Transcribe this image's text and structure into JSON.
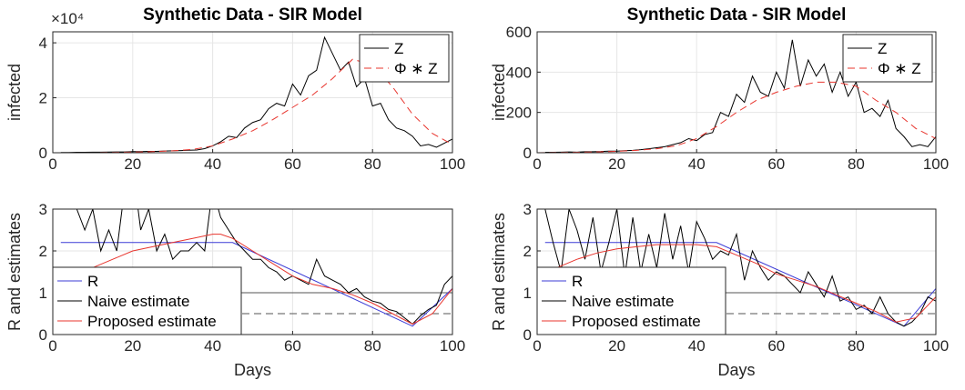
{
  "chart_data": [
    {
      "type": "line",
      "title": "Synthetic Data - SIR Model",
      "ylabel": "infected",
      "y_exponent": "×10⁴",
      "x": [
        2,
        4,
        6,
        8,
        10,
        12,
        14,
        16,
        18,
        20,
        22,
        24,
        26,
        28,
        30,
        32,
        34,
        36,
        38,
        40,
        42,
        44,
        46,
        48,
        50,
        52,
        54,
        56,
        58,
        60,
        62,
        64,
        66,
        68,
        70,
        72,
        74,
        76,
        78,
        80,
        82,
        84,
        86,
        88,
        90,
        92,
        94,
        96,
        98,
        100
      ],
      "xlim": [
        0,
        100
      ],
      "xticks": [
        0,
        20,
        40,
        60,
        80,
        100
      ],
      "ylim": [
        0,
        44000
      ],
      "yticks": [
        0,
        {
          "value": 20000,
          "label": "2"
        },
        {
          "value": 40000,
          "label": "4"
        }
      ],
      "grid": true,
      "legend": "northeast",
      "series": [
        {
          "name": "Z",
          "color": "#000000",
          "style": "solid",
          "values": [
            100,
            100,
            150,
            150,
            200,
            200,
            250,
            300,
            300,
            400,
            400,
            500,
            500,
            600,
            700,
            800,
            900,
            1000,
            1500,
            2500,
            4000,
            6000,
            5500,
            9000,
            11000,
            12000,
            16000,
            18000,
            17000,
            25000,
            21000,
            28000,
            30000,
            42000,
            36000,
            30000,
            33000,
            24000,
            27000,
            17000,
            18000,
            12000,
            9000,
            8000,
            6000,
            2500,
            3000,
            2000,
            3500,
            5000
          ]
        },
        {
          "name": "Φ ∗ Z",
          "color": "#e8352e",
          "style": "dashed",
          "x": [
            0,
            5,
            10,
            15,
            20,
            25,
            30,
            35,
            40,
            45,
            50,
            55,
            60,
            65,
            70,
            75,
            80,
            85,
            90,
            95,
            100
          ],
          "values": [
            0,
            0,
            0,
            100,
            200,
            400,
            700,
            1200,
            2500,
            5000,
            8000,
            12000,
            16500,
            21000,
            27000,
            34000,
            32000,
            24000,
            14000,
            7000,
            3000
          ]
        }
      ]
    },
    {
      "type": "line",
      "title": "Synthetic Data - SIR Model",
      "ylabel": "infected",
      "x": [
        2,
        4,
        6,
        8,
        10,
        12,
        14,
        16,
        18,
        20,
        22,
        24,
        26,
        28,
        30,
        32,
        34,
        36,
        38,
        40,
        42,
        44,
        46,
        48,
        50,
        52,
        54,
        56,
        58,
        60,
        62,
        64,
        66,
        68,
        70,
        72,
        74,
        76,
        78,
        80,
        82,
        84,
        86,
        88,
        90,
        92,
        94,
        96,
        98,
        100
      ],
      "xlim": [
        0,
        100
      ],
      "xticks": [
        0,
        20,
        40,
        60,
        80,
        100
      ],
      "ylim": [
        0,
        600
      ],
      "yticks": [
        0,
        200,
        400,
        600
      ],
      "grid": true,
      "legend": "northeast",
      "series": [
        {
          "name": "Z",
          "color": "#000000",
          "style": "solid",
          "values": [
            2,
            2,
            3,
            4,
            3,
            5,
            5,
            6,
            8,
            8,
            10,
            12,
            15,
            20,
            25,
            30,
            40,
            50,
            70,
            60,
            90,
            100,
            200,
            180,
            290,
            250,
            380,
            300,
            280,
            400,
            320,
            560,
            330,
            460,
            380,
            440,
            300,
            400,
            280,
            350,
            200,
            220,
            180,
            260,
            120,
            80,
            30,
            40,
            30,
            80
          ]
        },
        {
          "name": "Φ ∗ Z",
          "color": "#e8352e",
          "style": "dashed",
          "x": [
            0,
            5,
            10,
            15,
            20,
            25,
            30,
            35,
            40,
            45,
            50,
            55,
            60,
            65,
            70,
            75,
            80,
            85,
            90,
            95,
            100
          ],
          "values": [
            0,
            1,
            2,
            4,
            7,
            12,
            20,
            35,
            70,
            130,
            200,
            260,
            300,
            330,
            350,
            350,
            330,
            260,
            200,
            120,
            70
          ]
        }
      ]
    },
    {
      "type": "line",
      "ylabel": "R and estimates",
      "xlabel": "Days",
      "x": [
        2,
        4,
        6,
        8,
        10,
        12,
        14,
        16,
        18,
        20,
        22,
        24,
        26,
        28,
        30,
        32,
        34,
        36,
        38,
        40,
        42,
        44,
        46,
        48,
        50,
        52,
        54,
        56,
        58,
        60,
        62,
        64,
        66,
        68,
        70,
        72,
        74,
        76,
        78,
        80,
        82,
        84,
        86,
        88,
        90,
        92,
        94,
        96,
        98,
        100
      ],
      "xlim": [
        0,
        100
      ],
      "xticks": [
        0,
        20,
        40,
        60,
        80,
        100
      ],
      "ylim": [
        0,
        3
      ],
      "yticks": [
        0,
        1,
        2,
        3
      ],
      "grid": true,
      "legend": "southwest",
      "hlines": [
        {
          "value": 1,
          "color": "#555555",
          "style": "solid"
        },
        {
          "value": 0.5,
          "color": "#555555",
          "style": "dashed"
        }
      ],
      "series": [
        {
          "name": "R",
          "color": "#3b3bd6",
          "style": "solid",
          "x": [
            2,
            45,
            90,
            100
          ],
          "values": [
            2.2,
            2.2,
            0.2,
            1.1
          ]
        },
        {
          "name": "Naive estimate",
          "color": "#000000",
          "style": "solid",
          "values": [
            4,
            3.5,
            3,
            2.5,
            3,
            2,
            2.5,
            2,
            3.5,
            4,
            2.5,
            3,
            2,
            2.4,
            1.8,
            2,
            2,
            2.2,
            2,
            3.5,
            2.8,
            2.5,
            2.2,
            2,
            1.8,
            1.8,
            1.6,
            1.5,
            1.3,
            1.4,
            1.3,
            1.2,
            1.8,
            1.4,
            1.3,
            1.2,
            1,
            1.1,
            0.9,
            0.8,
            0.75,
            0.6,
            0.55,
            0.4,
            0.25,
            0.45,
            0.6,
            0.7,
            1.2,
            1.4
          ]
        },
        {
          "name": "Proposed estimate",
          "color": "#e8352e",
          "style": "solid",
          "x": [
            0,
            5,
            10,
            15,
            20,
            25,
            30,
            35,
            40,
            42,
            45,
            50,
            55,
            60,
            65,
            70,
            75,
            80,
            85,
            90,
            95,
            100
          ],
          "values": [
            1.2,
            1.4,
            1.6,
            1.8,
            2,
            2.1,
            2.2,
            2.3,
            2.4,
            2.4,
            2.3,
            2,
            1.7,
            1.4,
            1.2,
            1.1,
            0.95,
            0.75,
            0.5,
            0.25,
            0.5,
            1.1
          ]
        }
      ]
    },
    {
      "type": "line",
      "ylabel": "R and estimates",
      "xlabel": "Days",
      "x": [
        2,
        4,
        6,
        8,
        10,
        12,
        14,
        16,
        18,
        20,
        22,
        24,
        26,
        28,
        30,
        32,
        34,
        36,
        38,
        40,
        42,
        44,
        46,
        48,
        50,
        52,
        54,
        56,
        58,
        60,
        62,
        64,
        66,
        68,
        70,
        72,
        74,
        76,
        78,
        80,
        82,
        84,
        86,
        88,
        90,
        92,
        94,
        96,
        98,
        100
      ],
      "xlim": [
        0,
        100
      ],
      "xticks": [
        0,
        20,
        40,
        60,
        80,
        100
      ],
      "ylim": [
        0,
        3
      ],
      "yticks": [
        0,
        1,
        2,
        3
      ],
      "grid": true,
      "legend": "southwest",
      "hlines": [
        {
          "value": 1,
          "color": "#555555",
          "style": "solid"
        },
        {
          "value": 0.5,
          "color": "#555555",
          "style": "dashed"
        }
      ],
      "series": [
        {
          "name": "R",
          "color": "#3b3bd6",
          "style": "solid",
          "x": [
            2,
            45,
            92,
            100
          ],
          "values": [
            2.2,
            2.2,
            0.2,
            1.1
          ]
        },
        {
          "name": "Naive estimate",
          "color": "#000000",
          "style": "solid",
          "values": [
            3,
            2.2,
            1.5,
            3,
            2.5,
            1.8,
            2.8,
            1.5,
            2.2,
            3,
            1.4,
            2.8,
            1.5,
            2.4,
            1.6,
            2.9,
            1.8,
            2.6,
            1.5,
            2.7,
            2.3,
            1.8,
            2,
            1.9,
            2.4,
            1.3,
            2,
            1.6,
            1.3,
            1.5,
            1.4,
            1.2,
            1,
            1.5,
            1.2,
            0.9,
            1.4,
            0.8,
            0.9,
            0.6,
            0.7,
            0.5,
            0.9,
            0.5,
            0.3,
            0.2,
            0.3,
            0.5,
            0.9,
            0.8
          ]
        },
        {
          "name": "Proposed estimate",
          "color": "#e8352e",
          "style": "solid",
          "x": [
            0,
            5,
            10,
            15,
            20,
            25,
            30,
            35,
            40,
            45,
            50,
            55,
            60,
            65,
            70,
            75,
            80,
            85,
            90,
            95,
            100
          ],
          "values": [
            1.3,
            1.6,
            1.8,
            1.95,
            2.05,
            2.1,
            2.15,
            2.15,
            2.15,
            2.1,
            1.9,
            1.7,
            1.45,
            1.3,
            1.15,
            0.95,
            0.75,
            0.55,
            0.3,
            0.4,
            0.9
          ]
        }
      ]
    }
  ]
}
